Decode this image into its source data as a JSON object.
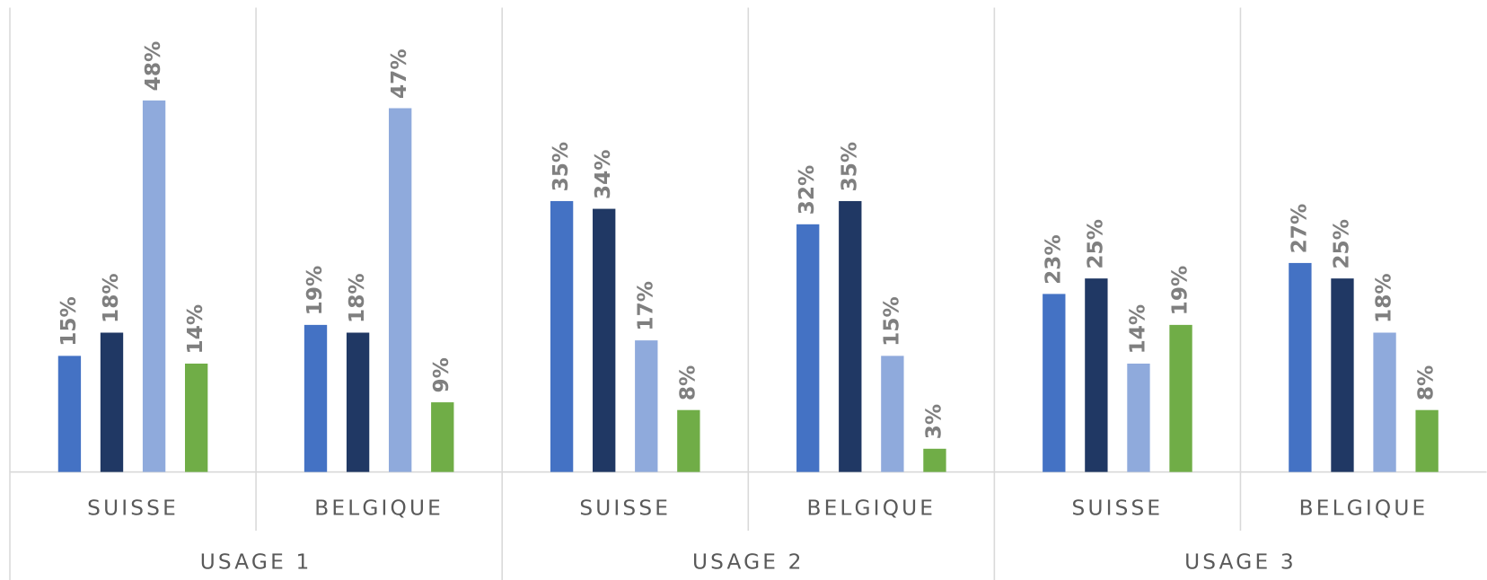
{
  "chart_data": {
    "type": "bar",
    "categories": [
      "SUISSE",
      "BELGIQUE",
      "SUISSE",
      "BELGIQUE",
      "SUISSE",
      "BELGIQUE"
    ],
    "groups": [
      "USAGE 1",
      "USAGE 2",
      "USAGE 3"
    ],
    "series": [
      {
        "color": "#4472c4",
        "values": [
          15,
          19,
          35,
          32,
          23,
          27
        ],
        "value_labels": [
          "15%",
          "19%",
          "35%",
          "32%",
          "23%",
          "27%"
        ]
      },
      {
        "color": "#203864",
        "values": [
          18,
          18,
          34,
          35,
          25,
          25
        ],
        "value_labels": [
          "18%",
          "18%",
          "34%",
          "35%",
          "25%",
          "25%"
        ]
      },
      {
        "color": "#8faadc",
        "values": [
          48,
          47,
          17,
          15,
          14,
          18
        ],
        "value_labels": [
          "48%",
          "47%",
          "17%",
          "15%",
          "14%",
          "18%"
        ]
      },
      {
        "color": "#70ad47",
        "values": [
          14,
          9,
          8,
          3,
          19,
          8
        ],
        "value_labels": [
          "14%",
          "9%",
          "8%",
          "3%",
          "19%",
          "8%"
        ]
      }
    ],
    "ylim": [
      0,
      60
    ]
  }
}
